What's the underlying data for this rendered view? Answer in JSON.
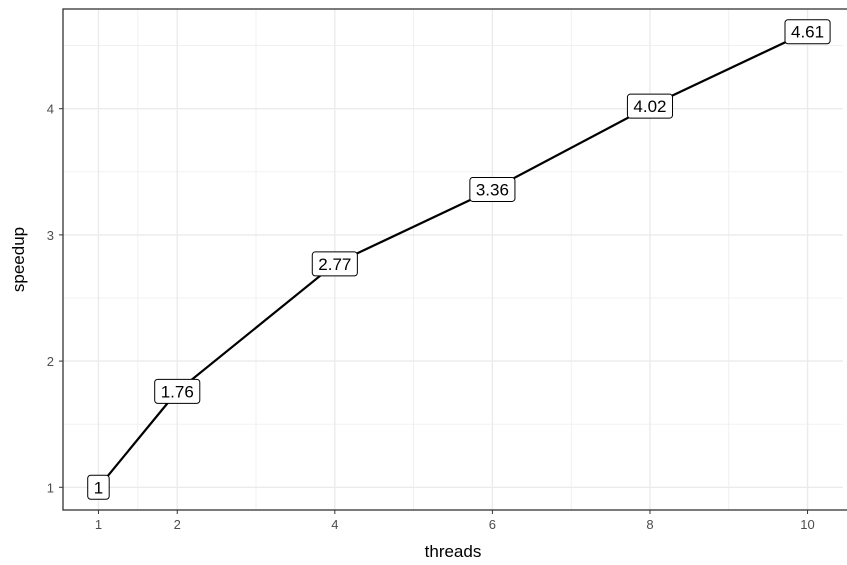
{
  "chart_data": {
    "type": "line",
    "title": "",
    "xlabel": "threads",
    "ylabel": "speedup",
    "x": [
      1,
      2,
      4,
      6,
      8,
      10
    ],
    "series": [
      {
        "values": [
          1,
          1.76,
          2.77,
          3.36,
          4.02,
          4.61
        ]
      }
    ],
    "data_labels": [
      "1",
      "1.76",
      "2.77",
      "3.36",
      "4.02",
      "4.61"
    ],
    "x_ticks": [
      1,
      2,
      4,
      6,
      8,
      10
    ],
    "x_tick_labels": [
      "1",
      "2",
      "4",
      "6",
      "8",
      "10"
    ],
    "y_ticks": [
      1,
      2,
      3,
      4
    ],
    "y_tick_labels": [
      "1",
      "2",
      "3",
      "4"
    ],
    "xlim": [
      0.55,
      10.45
    ],
    "ylim": [
      0.82,
      4.79
    ],
    "grid": true,
    "legend": "none",
    "colors": {
      "line": "#000000",
      "grid": "#ebebeb",
      "panel_border": "#333333",
      "label_fill": "#ffffff"
    }
  }
}
